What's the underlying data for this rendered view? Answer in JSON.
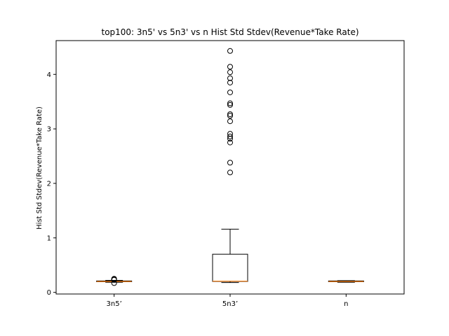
{
  "chart_data": {
    "type": "box",
    "title": "top100: 3n5' vs 5n3' vs n Hist Std Stdev(Revenue*Take Rate)",
    "xlabel": "",
    "ylabel": "Hist Std Stdev(Revenue*Take Rate)",
    "ylim": [
      -0.03,
      4.62
    ],
    "yticks": [
      "0",
      "1",
      "2",
      "3",
      "4"
    ],
    "grid": false,
    "categories": [
      "3n5’",
      "5n3’",
      "n"
    ],
    "boxes": [
      {
        "name": "3n5’",
        "whisker_low": 0.185,
        "q1": 0.195,
        "median": 0.2,
        "q3": 0.21,
        "whisker_high": 0.22,
        "outliers": [
          0.17,
          0.23,
          0.24,
          0.25
        ]
      },
      {
        "name": "5n3’",
        "whisker_low": 0.18,
        "q1": 0.2,
        "median": 0.205,
        "q3": 0.7,
        "whisker_high": 1.16,
        "outliers": [
          2.2,
          2.38,
          2.75,
          2.82,
          2.86,
          2.91,
          3.14,
          3.24,
          3.27,
          3.44,
          3.47,
          3.67,
          3.85,
          3.93,
          4.04,
          4.14,
          4.43
        ]
      },
      {
        "name": "n",
        "whisker_low": 0.185,
        "q1": 0.195,
        "median": 0.2,
        "q3": 0.21,
        "whisker_high": 0.215,
        "outliers": []
      }
    ],
    "colors": {
      "median": "#ff7f0e",
      "box": "#000000"
    }
  }
}
